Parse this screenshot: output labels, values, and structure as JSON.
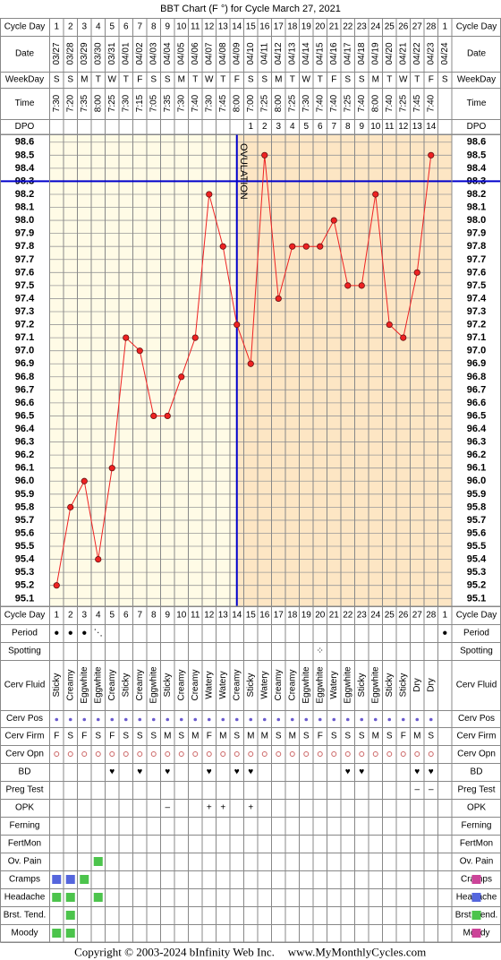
{
  "chart_data": {
    "type": "line",
    "title": "BBT Chart (F °) for Cycle March 27, 2021",
    "header_rows": [
      {
        "label": "Cycle Day",
        "values": [
          1,
          2,
          3,
          4,
          5,
          6,
          7,
          8,
          9,
          10,
          11,
          12,
          13,
          14,
          15,
          16,
          17,
          18,
          19,
          20,
          21,
          22,
          23,
          24,
          25,
          26,
          27,
          28,
          1
        ]
      },
      {
        "label": "Date",
        "values": [
          "03/27",
          "03/28",
          "03/29",
          "03/30",
          "03/31",
          "04/01",
          "04/02",
          "04/03",
          "04/04",
          "04/05",
          "04/06",
          "04/07",
          "04/08",
          "04/09",
          "04/10",
          "04/11",
          "04/12",
          "04/13",
          "04/14",
          "04/15",
          "04/16",
          "04/17",
          "04/18",
          "04/19",
          "04/20",
          "04/21",
          "04/22",
          "04/23",
          "04/24"
        ]
      },
      {
        "label": "WeekDay",
        "values": [
          "S",
          "S",
          "M",
          "T",
          "W",
          "T",
          "F",
          "S",
          "S",
          "M",
          "T",
          "W",
          "T",
          "F",
          "S",
          "S",
          "M",
          "T",
          "W",
          "T",
          "F",
          "S",
          "S",
          "M",
          "T",
          "W",
          "T",
          "F",
          "S"
        ]
      },
      {
        "label": "Time",
        "values": [
          "7:30",
          "7:20",
          "7:35",
          "8:00",
          "7:25",
          "7:30",
          "7:15",
          "7:05",
          "7:35",
          "7:30",
          "7:40",
          "7:30",
          "7:45",
          "8:00",
          "7:00",
          "7:25",
          "8:00",
          "7:25",
          "7:30",
          "7:40",
          "7:40",
          "7:25",
          "7:40",
          "8:00",
          "7:40",
          "7:25",
          "7:45",
          "7:40",
          null
        ]
      },
      {
        "label": "DPO",
        "values": [
          null,
          null,
          null,
          null,
          null,
          null,
          null,
          null,
          null,
          null,
          null,
          null,
          null,
          null,
          1,
          2,
          3,
          4,
          5,
          6,
          7,
          8,
          9,
          10,
          11,
          12,
          13,
          14,
          null
        ]
      }
    ],
    "values": [
      95.2,
      95.8,
      96.0,
      95.4,
      96.1,
      97.1,
      97.0,
      96.5,
      96.5,
      96.8,
      97.1,
      98.2,
      97.8,
      97.2,
      96.9,
      98.5,
      97.4,
      97.8,
      97.8,
      97.8,
      98.0,
      97.5,
      97.5,
      98.2,
      97.2,
      97.1,
      97.6,
      98.5,
      null
    ],
    "color": "#ee2222",
    "coverline": 98.3,
    "ovulation_day": 14,
    "ovulation_label": "OVULATION",
    "ylim": [
      95.04,
      98.66
    ],
    "yticks": [
      98.6,
      98.5,
      98.4,
      98.3,
      98.2,
      98.1,
      {
        "value": 98,
        "label": "98.0"
      },
      97.9,
      97.8,
      97.7,
      97.6,
      97.5,
      97.4,
      97.3,
      97.2,
      97.1,
      {
        "value": 97,
        "label": "97.0"
      },
      96.9,
      96.8,
      96.7,
      96.6,
      96.5,
      96.4,
      96.3,
      96.2,
      96.1,
      {
        "value": 96,
        "label": "96.0"
      },
      95.9,
      95.8,
      95.7,
      95.6,
      95.5,
      95.4,
      95.3,
      95.2,
      95.1
    ],
    "grid": true,
    "sign_rows": [
      {
        "label": "Period",
        "color": "#ff00ff",
        "values": [
          "●",
          "●",
          "●",
          "⋱",
          null,
          null,
          null,
          null,
          null,
          null,
          null,
          null,
          null,
          null,
          null,
          null,
          null,
          null,
          null,
          null,
          null,
          null,
          null,
          null,
          null,
          null,
          null,
          null,
          "●"
        ]
      },
      {
        "label": "Spotting",
        "color": "#e0407a",
        "values": [
          null,
          null,
          null,
          null,
          null,
          null,
          null,
          null,
          null,
          null,
          null,
          null,
          null,
          null,
          null,
          null,
          null,
          null,
          null,
          "⁘",
          null,
          null,
          null,
          null,
          null,
          null,
          null,
          null,
          null
        ]
      },
      {
        "label": "Cerv Fluid",
        "color": "#000000",
        "values": [
          "Sticky",
          "Creamy",
          "Eggwhite",
          "Eggwhite",
          "Creamy",
          "Sticky",
          "Creamy",
          "Eggwhite",
          "Sticky",
          "Creamy",
          "Creamy",
          "Watery",
          "Watery",
          "Creamy",
          "Sticky",
          "Watery",
          "Creamy",
          "Creamy",
          "Eggwhite",
          "Eggwhite",
          "Watery",
          "Eggwhite",
          "Sticky",
          "Eggwhite",
          "Sticky",
          "Sticky",
          "Dry",
          "Dry",
          null
        ]
      },
      {
        "label": "Cerv Pos"
      },
      {
        "label": "Cerv Firm",
        "color": "#6a5acd",
        "values": [
          "F",
          "S",
          "F",
          "S",
          "F",
          "S",
          "S",
          "S",
          "M",
          "S",
          "M",
          "F",
          "M",
          "S",
          "M",
          "M",
          "S",
          "M",
          "S",
          "F",
          "S",
          "S",
          "S",
          "M",
          "S",
          "F",
          "M",
          "S",
          null
        ]
      },
      {
        "label": "Cerv Opn"
      },
      {
        "label": "BD",
        "color": "#e0306a",
        "values": [
          null,
          null,
          null,
          null,
          "♥",
          null,
          "♥",
          null,
          "♥",
          null,
          null,
          "♥",
          null,
          "♥",
          "♥",
          null,
          null,
          null,
          null,
          null,
          null,
          "♥",
          "♥",
          null,
          null,
          null,
          "♥",
          "♥",
          null
        ]
      },
      {
        "label": "Preg Test",
        "color": "#8833aa",
        "values": [
          null,
          null,
          null,
          null,
          null,
          null,
          null,
          null,
          null,
          null,
          null,
          null,
          null,
          null,
          null,
          null,
          null,
          null,
          null,
          null,
          null,
          null,
          null,
          null,
          null,
          null,
          "–",
          "–",
          null
        ]
      },
      {
        "label": "OPK",
        "color": "#6633cc",
        "values": [
          null,
          null,
          null,
          null,
          null,
          null,
          null,
          null,
          "–",
          null,
          null,
          "+",
          "+",
          null,
          "+",
          null,
          null,
          null,
          null,
          null,
          null,
          null,
          null,
          null,
          null,
          null,
          null,
          null,
          null
        ]
      },
      {
        "label": "Ferning"
      },
      {
        "label": "FertMon"
      },
      {
        "label": "Ov. Pain",
        "colors": [
          null,
          null,
          null,
          "#4cc44c",
          null,
          null,
          null,
          null,
          null,
          null,
          null,
          null,
          null,
          null,
          null,
          null,
          null,
          null,
          null,
          null,
          null,
          null,
          null,
          null,
          null,
          null,
          null,
          null,
          null
        ]
      },
      {
        "label": "Cramps",
        "colors": [
          "#5566dd",
          "#5566dd",
          "#4cc44c",
          null,
          null,
          null,
          null,
          null,
          null,
          null,
          null,
          null,
          null,
          null,
          null,
          null,
          null,
          null,
          null,
          null,
          null,
          null,
          null,
          null,
          null,
          null,
          null,
          null,
          "#cc4499"
        ]
      },
      {
        "label": "Headache",
        "colors": [
          "#4cc44c",
          "#4cc44c",
          null,
          "#4cc44c",
          null,
          null,
          null,
          null,
          null,
          null,
          null,
          null,
          null,
          null,
          null,
          null,
          null,
          null,
          null,
          null,
          null,
          null,
          null,
          null,
          null,
          null,
          null,
          null,
          "#5566dd"
        ]
      },
      {
        "label": "Brst. Tend.",
        "colors": [
          null,
          "#4cc44c",
          null,
          null,
          null,
          null,
          null,
          null,
          null,
          null,
          null,
          null,
          null,
          null,
          null,
          null,
          null,
          null,
          null,
          null,
          null,
          null,
          null,
          null,
          null,
          null,
          null,
          null,
          "#4cc44c"
        ]
      },
      {
        "label": "Moody",
        "colors": [
          "#4cc44c",
          "#4cc44c",
          null,
          null,
          null,
          null,
          null,
          null,
          null,
          null,
          null,
          null,
          null,
          null,
          null,
          null,
          null,
          null,
          null,
          null,
          null,
          null,
          null,
          null,
          null,
          null,
          null,
          null,
          "#cc4499"
        ]
      }
    ],
    "footer": [
      "Copyright © 2003-2024 bInfinity Web Inc.",
      "www.MyMonthlyCycles.com"
    ]
  }
}
